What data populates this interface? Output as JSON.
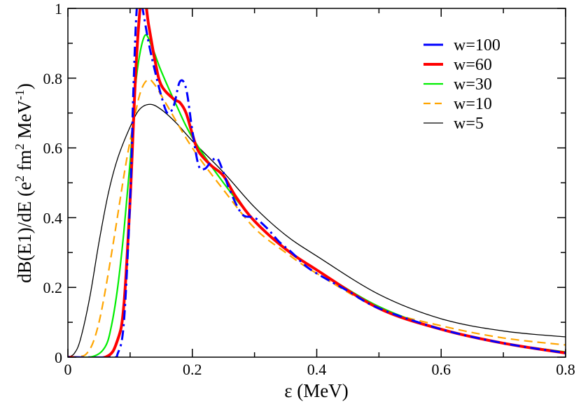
{
  "chart_data": {
    "type": "line",
    "title": "",
    "xlabel": "ε  (MeV)",
    "ylabel_parts": {
      "main": "dB(E1)/dE  (e",
      "sup1": "2",
      "mid1": " fm",
      "sup2": "2",
      "mid2": " MeV",
      "sup3": "-1",
      "end": ")"
    },
    "xlim": [
      0,
      0.8
    ],
    "ylim": [
      0,
      1
    ],
    "x_ticks": [
      "0",
      "0.2",
      "0.4",
      "0.6",
      "0.8"
    ],
    "y_ticks": [
      "0",
      "0.2",
      "0.4",
      "0.6",
      "0.8",
      "1"
    ],
    "grid": false,
    "legend_position": "top-right",
    "series": [
      {
        "name": "w=100",
        "color": "#0000ff",
        "style": "dash-dot",
        "x": [
          0,
          0.07,
          0.08,
          0.09,
          0.1,
          0.105,
          0.11,
          0.115,
          0.12,
          0.13,
          0.14,
          0.15,
          0.16,
          0.17,
          0.18,
          0.19,
          0.2,
          0.21,
          0.22,
          0.23,
          0.24,
          0.25,
          0.26,
          0.28,
          0.3,
          0.32,
          0.34,
          0.36,
          0.38,
          0.4,
          0.45,
          0.5,
          0.6,
          0.7,
          0.8
        ],
        "y": [
          0,
          0,
          0.01,
          0.1,
          0.45,
          0.75,
          0.98,
          1.05,
          1.0,
          0.9,
          0.82,
          0.75,
          0.7,
          0.72,
          0.79,
          0.77,
          0.65,
          0.55,
          0.54,
          0.56,
          0.57,
          0.53,
          0.48,
          0.41,
          0.4,
          0.37,
          0.33,
          0.3,
          0.265,
          0.24,
          0.19,
          0.14,
          0.08,
          0.04,
          0.012
        ]
      },
      {
        "name": "w=60",
        "color": "#ff0000",
        "style": "solid-thick",
        "x": [
          0,
          0.06,
          0.08,
          0.09,
          0.1,
          0.11,
          0.12,
          0.13,
          0.14,
          0.15,
          0.17,
          0.18,
          0.19,
          0.2,
          0.21,
          0.23,
          0.25,
          0.27,
          0.3,
          0.35,
          0.4,
          0.5,
          0.6,
          0.7,
          0.8
        ],
        "y": [
          0,
          0,
          0.05,
          0.15,
          0.45,
          0.85,
          1.05,
          0.95,
          0.85,
          0.78,
          0.74,
          0.73,
          0.7,
          0.64,
          0.59,
          0.55,
          0.52,
          0.46,
          0.39,
          0.31,
          0.25,
          0.14,
          0.08,
          0.04,
          0.012
        ]
      },
      {
        "name": "w=30",
        "color": "#00ee00",
        "style": "solid",
        "x": [
          0,
          0.04,
          0.06,
          0.07,
          0.08,
          0.09,
          0.1,
          0.11,
          0.123,
          0.135,
          0.15,
          0.175,
          0.2,
          0.25,
          0.3,
          0.35,
          0.4,
          0.5,
          0.6,
          0.7,
          0.8
        ],
        "y": [
          0,
          0.002,
          0.03,
          0.09,
          0.2,
          0.36,
          0.56,
          0.8,
          0.92,
          0.89,
          0.82,
          0.72,
          0.63,
          0.5,
          0.39,
          0.31,
          0.25,
          0.145,
          0.08,
          0.04,
          0.015
        ]
      },
      {
        "name": "w=10",
        "color": "#ffa500",
        "style": "dashed",
        "x": [
          0,
          0.02,
          0.03,
          0.04,
          0.05,
          0.06,
          0.075,
          0.09,
          0.1,
          0.115,
          0.128,
          0.14,
          0.16,
          0.2,
          0.25,
          0.3,
          0.35,
          0.4,
          0.5,
          0.6,
          0.7,
          0.8
        ],
        "y": [
          0,
          0.002,
          0.01,
          0.04,
          0.1,
          0.19,
          0.35,
          0.52,
          0.62,
          0.75,
          0.795,
          0.78,
          0.72,
          0.6,
          0.48,
          0.37,
          0.3,
          0.24,
          0.14,
          0.09,
          0.055,
          0.035
        ]
      },
      {
        "name": "w=5",
        "color": "#000000",
        "style": "solid-thin",
        "x": [
          0,
          0.01,
          0.02,
          0.035,
          0.05,
          0.065,
          0.08,
          0.1,
          0.115,
          0.132,
          0.15,
          0.175,
          0.2,
          0.25,
          0.3,
          0.35,
          0.4,
          0.5,
          0.6,
          0.7,
          0.8
        ],
        "y": [
          0,
          0.01,
          0.05,
          0.17,
          0.33,
          0.47,
          0.57,
          0.66,
          0.71,
          0.725,
          0.71,
          0.67,
          0.62,
          0.53,
          0.43,
          0.35,
          0.29,
          0.18,
          0.11,
          0.075,
          0.058
        ]
      }
    ]
  }
}
